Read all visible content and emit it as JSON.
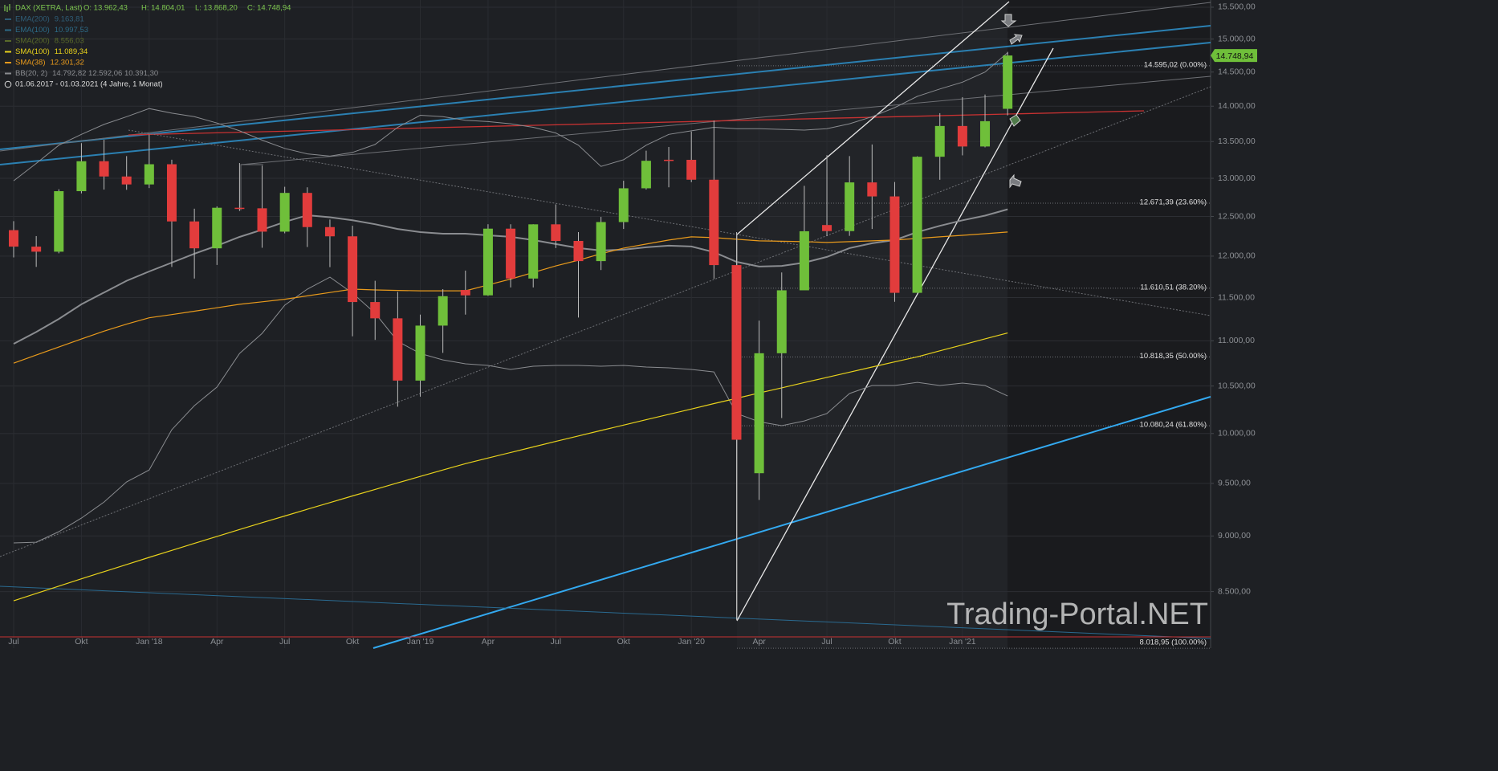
{
  "header": {
    "title": "DAX (XETRA, Last)",
    "ohlc": [
      "O: 13.962,43",
      "H: 14.804,01",
      "L: 13.868,20",
      "C: 14.748,94"
    ],
    "indicators": [
      {
        "name": "EMA(200)",
        "value": "9.163,81",
        "color": "#2f5e78"
      },
      {
        "name": "EMA(100)",
        "value": "10.997,53",
        "color": "#2c6a86"
      },
      {
        "name": "SMA(200)",
        "value": "8.556,03",
        "color": "#5a6a2a"
      }
    ],
    "date_range": "01.06.2017 - 01.03.2021",
    "period": "(4 Jahre, 1 Monat)",
    "watermark": "Trading-Portal.NET"
  },
  "chart_data": {
    "type": "candlestick",
    "log_scale": true,
    "grid": true,
    "categories": [
      "Jul",
      null,
      null,
      "Okt",
      null,
      null,
      "Jan '18",
      null,
      null,
      "Apr",
      null,
      null,
      "Jul",
      null,
      null,
      "Okt",
      null,
      null,
      "Jan '19",
      null,
      null,
      "Apr",
      null,
      null,
      "Jul",
      null,
      null,
      "Okt",
      null,
      null,
      "Jan '20",
      null,
      null,
      "Apr",
      null,
      null,
      "Jul",
      null,
      null,
      "Okt",
      null,
      null,
      "Jan '21",
      null,
      null
    ],
    "open": [
      12325,
      12118,
      12055,
      12829,
      13230,
      13024,
      12918,
      13189,
      12436,
      12097,
      12612,
      12605,
      12306,
      12806,
      12364,
      12247,
      11447,
      11257,
      10559,
      11173,
      11590,
      11526,
      12344,
      11727,
      12399,
      12189,
      11939,
      12428,
      12867,
      13250,
      13249,
      12981,
      11890,
      9600,
      10860,
      11586,
      12390,
      12313,
      12945,
      12760,
      11556,
      13291,
      13718,
      13432,
      13962.43
    ],
    "high": [
      12440,
      12250,
      12854,
      13478,
      13525,
      13300,
      13597,
      13250,
      12600,
      12630,
      13205,
      13170,
      12887,
      12880,
      12460,
      12380,
      11700,
      11567,
      11300,
      11600,
      11823,
      12400,
      12400,
      12400,
      12656,
      12300,
      12494,
      12967,
      13374,
      13425,
      13640,
      13795,
      12300,
      11230,
      11800,
      12900,
      13313,
      13300,
      13460,
      12950,
      13297,
      13900,
      14131,
      14169,
      14804.01
    ],
    "low": [
      11984,
      11868,
      12035,
      12800,
      12850,
      12847,
      12870,
      11868,
      11727,
      11892,
      12571,
      12104,
      12285,
      12113,
      11865,
      11051,
      11010,
      10279,
      10386,
      10864,
      11300,
      11520,
      11620,
      11620,
      12100,
      11266,
      11830,
      12340,
      12850,
      12880,
      12948,
      11724,
      8256,
      9340,
      10160,
      11600,
      12250,
      12253,
      12340,
      11450,
      11556,
      12980,
      13310,
      13420,
      13868.2
    ],
    "close": [
      12118,
      12055,
      12829,
      13230,
      13024,
      12918,
      13189,
      12436,
      12097,
      12612,
      12605,
      12306,
      12806,
      12364,
      12247,
      11447,
      11257,
      10559,
      11173,
      11516,
      11526,
      12344,
      11727,
      12399,
      12189,
      11939,
      12428,
      12867,
      13236,
      13249,
      12981,
      11890,
      9936,
      10860,
      11586,
      12311,
      12313,
      12945,
      12760,
      11556,
      13291,
      13718,
      13432,
      13786,
      14748.94
    ],
    "up_color": "#6fbf3a",
    "down_color": "#e23c3c",
    "series": [
      {
        "name": "SMA(100)",
        "value_label": "11.089,34",
        "color": "#e8d21c",
        "values": [
          8420,
          8484,
          8548,
          8612,
          8676,
          8740,
          8804,
          8868,
          8932,
          8996,
          9060,
          9124,
          9187,
          9251,
          9314,
          9378,
          9441,
          9505,
          9568,
          9632,
          9695,
          9751,
          9807,
          9863,
          9919,
          9975,
          10031,
          10087,
          10143,
          10199,
          10255,
          10312,
          10368,
          10425,
          10481,
          10538,
          10594,
          10651,
          10707,
          10764,
          10820,
          10887,
          10954,
          11022,
          11089
        ]
      },
      {
        "name": "SMA(38)",
        "value_label": "12.301,32",
        "color": "#e89a1c",
        "values": [
          10750,
          10840,
          10930,
          11020,
          11110,
          11190,
          11263,
          11300,
          11340,
          11380,
          11420,
          11450,
          11480,
          11520,
          11560,
          11600,
          11590,
          11585,
          11580,
          11580,
          11580,
          11650,
          11720,
          11800,
          11880,
          11950,
          12030,
          12100,
          12150,
          12200,
          12240,
          12230,
          12210,
          12190,
          12185,
          12180,
          12170,
          12180,
          12190,
          12200,
          12220,
          12240,
          12260,
          12280,
          12301
        ]
      }
    ],
    "bollinger": {
      "name": "BB(20, 2)",
      "value_label": "14.792,82  12.592,06  10.391,30",
      "color": "#8a8c90",
      "upper": [
        12967,
        13200,
        13450,
        13600,
        13740,
        13850,
        13966,
        13900,
        13850,
        13760,
        13650,
        13520,
        13405,
        13330,
        13300,
        13350,
        13460,
        13700,
        13870,
        13850,
        13800,
        13780,
        13750,
        13700,
        13620,
        13450,
        13160,
        13250,
        13450,
        13600,
        13650,
        13700,
        13680,
        13680,
        13670,
        13660,
        13680,
        13750,
        13850,
        13980,
        14142,
        14250,
        14350,
        14500,
        14792
      ],
      "middle": [
        10966,
        11100,
        11250,
        11420,
        11560,
        11700,
        11813,
        11920,
        12030,
        12130,
        12239,
        12330,
        12430,
        12515,
        12490,
        12450,
        12400,
        12340,
        12300,
        12280,
        12280,
        12260,
        12240,
        12200,
        12150,
        12100,
        12070,
        12080,
        12110,
        12130,
        12120,
        12050,
        11930,
        11872,
        11880,
        11920,
        11990,
        12100,
        12160,
        12200,
        12300,
        12380,
        12450,
        12510,
        12592
      ],
      "lower": [
        8936,
        8943,
        9040,
        9167,
        9320,
        9515,
        9632,
        10039,
        10290,
        10489,
        10858,
        11084,
        11410,
        11600,
        11744,
        11552,
        11317,
        10994,
        10858,
        10786,
        10743,
        10725,
        10681,
        10716,
        10725,
        10725,
        10716,
        10725,
        10707,
        10698,
        10681,
        10653,
        10207,
        10122,
        10081,
        10130,
        10207,
        10419,
        10506,
        10506,
        10540,
        10506,
        10532,
        10506,
        10393
      ]
    },
    "ylim": [
      8020,
      15615
    ],
    "yticks": [
      {
        "value": 8500,
        "label": "8.500,00"
      },
      {
        "value": 9000,
        "label": "9.000,00"
      },
      {
        "value": 9500,
        "label": "9.500,00"
      },
      {
        "value": 10000,
        "label": "10.000,00"
      },
      {
        "value": 10500,
        "label": "10.500,00"
      },
      {
        "value": 11000,
        "label": "11.000,00"
      },
      {
        "value": 11500,
        "label": "11.500,00"
      },
      {
        "value": 12000,
        "label": "12.000,00"
      },
      {
        "value": 12500,
        "label": "12.500,00"
      },
      {
        "value": 13000,
        "label": "13.000,00"
      },
      {
        "value": 13500,
        "label": "13.500,00"
      },
      {
        "value": 14000,
        "label": "14.000,00"
      },
      {
        "value": 14500,
        "label": "14.500,00"
      },
      {
        "value": 15000,
        "label": "15.000,00"
      },
      {
        "value": 15500,
        "label": "15.500,00"
      }
    ],
    "fibonacci": [
      {
        "value": 14595.02,
        "label": "14.595,02 (0.00%)"
      },
      {
        "value": 12671.39,
        "label": "12.671,39 (23.60%)"
      },
      {
        "value": 11610.51,
        "label": "11.610,51 (38.20%)"
      },
      {
        "value": 10818.35,
        "label": "10.818,35 (50.00%)"
      },
      {
        "value": 10080.24,
        "label": "10.080,24 (61.80%)"
      },
      {
        "value": 8018.95,
        "label": "8.018,95 (100.00%)"
      }
    ],
    "last_price": {
      "value": 14748.94,
      "label": "14.748,94",
      "color": "#6fbf3a"
    }
  }
}
